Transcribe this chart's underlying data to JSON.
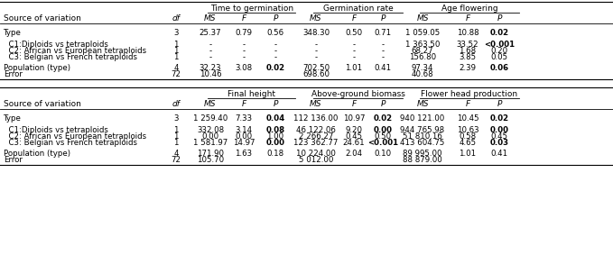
{
  "bg_color": "#ffffff",
  "font_size": 6.5,
  "font_size_data": 6.2,
  "top_headers": [
    "Time to germination",
    "Germination rate",
    "Age flowering"
  ],
  "top_headers2": [
    "Final height",
    "Above-ground biomass",
    "Flower head production"
  ],
  "table1_rows": [
    {
      "src": "Type",
      "df": "3",
      "ms1": "25.37",
      "f1": "0.79",
      "p1": "0.56",
      "p1b": false,
      "ms2": "348.30",
      "f2": "0.50",
      "p2": "0.71",
      "p2b": false,
      "ms3": "1 059.05",
      "f3": "10.88",
      "p3": "0.02",
      "p3b": true
    },
    {
      "src": "  C1:Diploids vs tetraploids",
      "df": "1",
      "ms1": "-",
      "f1": "-",
      "p1": "-",
      "p1b": false,
      "ms2": "-",
      "f2": "-",
      "p2": "-",
      "p2b": false,
      "ms3": "1 363.50",
      "f3": "33.52",
      "p3": "<0.001",
      "p3b": true
    },
    {
      "src": "  C2: African vs European tetraploids",
      "df": "1",
      "ms1": "-",
      "f1": "-",
      "p1": "-",
      "p1b": false,
      "ms2": "-",
      "f2": "-",
      "p2": "-",
      "p2b": false,
      "ms3": "68.27",
      "f3": "1.68",
      "p3": "0.20",
      "p3b": false
    },
    {
      "src": "  C3: Belgian vs French tetraploids",
      "df": "1",
      "ms1": "-",
      "f1": "-",
      "p1": "-",
      "p1b": false,
      "ms2": "-",
      "f2": "-",
      "p2": "-",
      "p2b": false,
      "ms3": "156.80",
      "f3": "3.85",
      "p3": "0.05",
      "p3b": false
    },
    {
      "src": "Population (type)",
      "df": "4",
      "ms1": "32.23",
      "f1": "3.08",
      "p1": "0.02",
      "p1b": true,
      "ms2": "702.50",
      "f2": "1.01",
      "p2": "0.41",
      "p2b": false,
      "ms3": "97.34",
      "f3": "2.39",
      "p3": "0.06",
      "p3b": true
    },
    {
      "src": "Error",
      "df": "72",
      "ms1": "10.46",
      "f1": "",
      "p1": "",
      "p1b": false,
      "ms2": "698.60",
      "f2": "",
      "p2": "",
      "p2b": false,
      "ms3": "40.68",
      "f3": "",
      "p3": "",
      "p3b": false
    }
  ],
  "table2_rows": [
    {
      "src": "Type",
      "df": "3",
      "ms1": "1 259.40",
      "f1": "7.33",
      "p1": "0.04",
      "p1b": true,
      "ms2": "112 136.00",
      "f2": "10.97",
      "p2": "0.02",
      "p2b": true,
      "ms3": "940 121.00",
      "f3": "10.45",
      "p3": "0.02",
      "p3b": true
    },
    {
      "src": "  C1:Diploids vs tetraploids",
      "df": "1",
      "ms1": "332.08",
      "f1": "3.14",
      "p1": "0.08",
      "p1b": true,
      "ms2": "46 122.06",
      "f2": "9.20",
      "p2": "0.00",
      "p2b": true,
      "ms3": "944 765.98",
      "f3": "10.63",
      "p3": "0.00",
      "p3b": true
    },
    {
      "src": "  C2: African vs European tetraploids",
      "df": "1",
      "ms1": "0.00",
      "f1": "0.00",
      "p1": "1.00",
      "p1b": false,
      "ms2": "2 266.27",
      "f2": "0.45",
      "p2": "0.50",
      "p2b": false,
      "ms3": "51 810.16",
      "f3": "0.58",
      "p3": "0.45",
      "p3b": false
    },
    {
      "src": "  C3: Belgian vs French tetraploids",
      "df": "1",
      "ms1": "1 581.97",
      "f1": "14.97",
      "p1": "0.00",
      "p1b": true,
      "ms2": "123 362.77",
      "f2": "24.61",
      "p2": "<0.001",
      "p2b": true,
      "ms3": "413 604.75",
      "f3": "4.65",
      "p3": "0.03",
      "p3b": true
    },
    {
      "src": "Population (type)",
      "df": "4",
      "ms1": "171.90",
      "f1": "1.63",
      "p1": "0.18",
      "p1b": false,
      "ms2": "10 224.00",
      "f2": "2.04",
      "p2": "0.10",
      "p2b": false,
      "ms3": "89 995.00",
      "f3": "1.01",
      "p3": "0.41",
      "p3b": false
    },
    {
      "src": "Error",
      "df": "72",
      "ms1": "105.70",
      "f1": "",
      "p1": "",
      "p1b": false,
      "ms2": "5 012.00",
      "f2": "",
      "p2": "",
      "p2b": false,
      "ms3": "88 879.00",
      "f3": "",
      "p3": "",
      "p3b": false
    }
  ]
}
